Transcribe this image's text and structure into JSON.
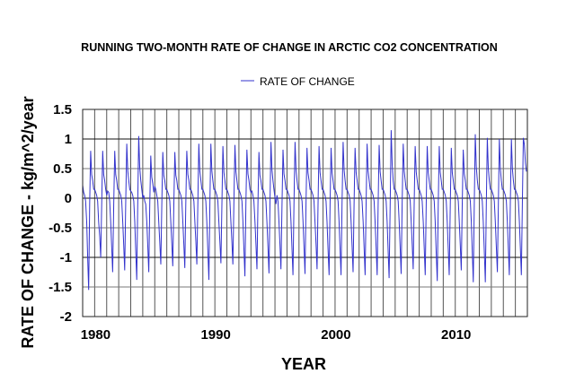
{
  "chart_data": {
    "type": "line",
    "title": "RUNNING TWO-MONTH RATE OF CHANGE IN ARCTIC CO2 CONCENTRATION",
    "xlabel": "YEAR",
    "ylabel": "RATE OF CHANGE - kg/m^2/year",
    "xlim": [
      1979,
      2016
    ],
    "ylim": [
      -2,
      1.5
    ],
    "x_ticks": [
      1980,
      1990,
      2000,
      2010
    ],
    "x_tick_labels": [
      "1980",
      "1990",
      "2000",
      "2010"
    ],
    "y_ticks": [
      1.5,
      1,
      0.5,
      0,
      -0.5,
      -1,
      -1.5,
      -2
    ],
    "y_tick_labels": [
      "1.5",
      "1",
      "0.5",
      "0",
      "-0.5",
      "-1",
      "-1.5",
      "-2"
    ],
    "grid": true,
    "vertical_grid": "every year",
    "legend_position": "top-center",
    "line_color": "#3333cc",
    "series": [
      {
        "name": "RATE OF CHANGE",
        "sampling": "monthly",
        "years": [
          {
            "year": 1979,
            "values": [
              0.22,
              0.1,
              0.05,
              -0.05,
              -0.4,
              -1.01,
              -1.55,
              -0.1,
              0.8,
              0.4,
              0.3,
              0.15
            ]
          },
          {
            "year": 1980,
            "values": [
              0.15,
              0.1,
              0.05,
              -0.05,
              -0.4,
              -0.65,
              -1.0,
              -0.1,
              0.8,
              0.4,
              0.3,
              0.15
            ]
          },
          {
            "year": 1981,
            "values": [
              0.05,
              0.12,
              0.1,
              -0.05,
              -0.4,
              -0.81,
              -1.25,
              -0.1,
              0.8,
              0.4,
              0.3,
              0.15
            ]
          },
          {
            "year": 1982,
            "values": [
              0.15,
              0.1,
              0.05,
              -0.05,
              -0.4,
              -0.79,
              -1.22,
              -0.1,
              0.92,
              0.46,
              0.3,
              0.15
            ]
          },
          {
            "year": 1983,
            "values": [
              0.12,
              0.1,
              0.05,
              -0.05,
              -0.4,
              -0.9,
              -1.38,
              -0.1,
              1.05,
              0.53,
              0.3,
              0.15
            ]
          },
          {
            "year": 1984,
            "values": [
              0.0,
              0.05,
              -0.05,
              -0.1,
              -0.4,
              -0.81,
              -1.25,
              -0.1,
              0.72,
              0.36,
              0.25,
              0.1
            ]
          },
          {
            "year": 1985,
            "values": [
              0.2,
              0.15,
              0.05,
              -0.05,
              -0.4,
              -0.73,
              -1.12,
              -0.1,
              0.78,
              0.39,
              0.3,
              0.15
            ]
          },
          {
            "year": 1986,
            "values": [
              0.15,
              0.1,
              0.05,
              -0.05,
              -0.4,
              -0.75,
              -1.15,
              -0.1,
              0.78,
              0.39,
              0.3,
              0.15
            ]
          },
          {
            "year": 1987,
            "values": [
              0.15,
              0.1,
              0.05,
              -0.05,
              -0.4,
              -0.77,
              -1.18,
              -0.1,
              0.8,
              0.4,
              0.3,
              0.15
            ]
          },
          {
            "year": 1988,
            "values": [
              0.15,
              0.1,
              0.05,
              -0.05,
              -0.4,
              -0.73,
              -1.12,
              -0.1,
              0.92,
              0.46,
              0.3,
              0.15
            ]
          },
          {
            "year": 1989,
            "values": [
              0.15,
              0.1,
              0.05,
              -0.05,
              -0.4,
              -0.9,
              -1.38,
              -0.1,
              0.92,
              0.46,
              0.3,
              0.15
            ]
          },
          {
            "year": 1990,
            "values": [
              0.15,
              0.1,
              0.05,
              -0.05,
              -0.4,
              -0.72,
              -1.1,
              -0.1,
              0.88,
              0.44,
              0.3,
              0.15
            ]
          },
          {
            "year": 1991,
            "values": [
              0.15,
              0.1,
              0.05,
              -0.05,
              -0.4,
              -0.73,
              -1.12,
              -0.1,
              0.9,
              0.45,
              0.3,
              0.15
            ]
          },
          {
            "year": 1992,
            "values": [
              0.15,
              0.1,
              0.05,
              -0.05,
              -0.4,
              -0.86,
              -1.32,
              -0.1,
              0.82,
              0.41,
              0.3,
              0.15
            ]
          },
          {
            "year": 1993,
            "values": [
              0.1,
              0.12,
              0.05,
              -0.05,
              -0.4,
              -0.78,
              -1.2,
              -0.1,
              0.78,
              0.39,
              0.3,
              0.15
            ]
          },
          {
            "year": 1994,
            "values": [
              0.15,
              0.1,
              0.05,
              -0.05,
              -0.4,
              -0.83,
              -1.27,
              -0.1,
              0.95,
              0.48,
              0.3,
              0.15
            ]
          },
          {
            "year": 1995,
            "values": [
              0.0,
              -0.1,
              0.05,
              -0.05,
              -0.4,
              -0.78,
              -1.2,
              -0.1,
              0.82,
              0.41,
              0.3,
              0.15
            ]
          },
          {
            "year": 1996,
            "values": [
              0.15,
              0.1,
              0.05,
              -0.05,
              -0.4,
              -0.85,
              -1.3,
              -0.1,
              0.95,
              0.48,
              0.3,
              0.15
            ]
          },
          {
            "year": 1997,
            "values": [
              0.15,
              0.1,
              0.05,
              -0.05,
              -0.4,
              -0.83,
              -1.28,
              -0.1,
              0.85,
              0.43,
              0.3,
              0.15
            ]
          },
          {
            "year": 1998,
            "values": [
              0.15,
              0.1,
              0.05,
              -0.05,
              -0.4,
              -0.78,
              -1.2,
              -0.1,
              0.88,
              0.44,
              0.3,
              0.15
            ]
          },
          {
            "year": 1999,
            "values": [
              0.15,
              0.1,
              0.05,
              -0.05,
              -0.4,
              -0.85,
              -1.3,
              -0.1,
              0.85,
              0.43,
              0.3,
              0.15
            ]
          },
          {
            "year": 2000,
            "values": [
              0.15,
              0.1,
              0.05,
              -0.05,
              -0.4,
              -0.85,
              -1.3,
              -0.1,
              0.95,
              0.48,
              0.3,
              0.15
            ]
          },
          {
            "year": 2001,
            "values": [
              0.15,
              0.1,
              0.05,
              -0.05,
              -0.4,
              -0.81,
              -1.25,
              -0.1,
              0.85,
              0.43,
              0.3,
              0.15
            ]
          },
          {
            "year": 2002,
            "values": [
              0.15,
              0.1,
              0.05,
              -0.05,
              -0.4,
              -0.85,
              -1.3,
              -0.1,
              0.92,
              0.46,
              0.3,
              0.15
            ]
          },
          {
            "year": 2003,
            "values": [
              0.15,
              0.1,
              0.05,
              -0.05,
              -0.4,
              -0.85,
              -1.3,
              -0.1,
              0.9,
              0.45,
              0.3,
              0.15
            ]
          },
          {
            "year": 2004,
            "values": [
              0.15,
              0.1,
              0.05,
              -0.05,
              -0.4,
              -0.88,
              -1.35,
              -0.1,
              1.15,
              0.58,
              0.3,
              0.15
            ]
          },
          {
            "year": 2005,
            "values": [
              0.15,
              0.1,
              0.05,
              -0.05,
              -0.4,
              -0.83,
              -1.28,
              -0.1,
              0.92,
              0.46,
              0.3,
              0.15
            ]
          },
          {
            "year": 2006,
            "values": [
              0.15,
              0.1,
              0.05,
              -0.05,
              -0.4,
              -0.78,
              -1.2,
              -0.1,
              0.88,
              0.44,
              0.3,
              0.15
            ]
          },
          {
            "year": 2007,
            "values": [
              0.15,
              0.1,
              0.05,
              -0.05,
              -0.4,
              -0.85,
              -1.3,
              -0.1,
              0.88,
              0.44,
              0.3,
              0.15
            ]
          },
          {
            "year": 2008,
            "values": [
              0.15,
              0.1,
              0.05,
              -0.05,
              -0.4,
              -0.91,
              -1.4,
              -0.1,
              0.88,
              0.44,
              0.3,
              0.15
            ]
          },
          {
            "year": 2009,
            "values": [
              0.15,
              0.1,
              0.05,
              -0.05,
              -0.4,
              -0.85,
              -1.3,
              -0.1,
              0.85,
              0.43,
              0.3,
              0.15
            ]
          },
          {
            "year": 2010,
            "values": [
              0.15,
              0.1,
              0.05,
              -0.05,
              -0.4,
              -0.79,
              -1.22,
              -0.1,
              0.82,
              0.41,
              0.3,
              0.15
            ]
          },
          {
            "year": 2011,
            "values": [
              0.15,
              0.1,
              0.05,
              -0.05,
              -0.4,
              -0.92,
              -1.42,
              -0.1,
              1.08,
              0.54,
              0.3,
              0.15
            ]
          },
          {
            "year": 2012,
            "values": [
              0.15,
              0.1,
              0.05,
              -0.05,
              -0.4,
              -0.92,
              -1.42,
              -0.1,
              1.02,
              0.51,
              0.3,
              0.15
            ]
          },
          {
            "year": 2013,
            "values": [
              0.15,
              0.1,
              0.05,
              -0.05,
              -0.4,
              -0.81,
              -1.25,
              -0.1,
              1.0,
              0.5,
              0.3,
              0.15
            ]
          },
          {
            "year": 2014,
            "values": [
              0.15,
              0.1,
              0.05,
              -0.05,
              -0.4,
              -0.85,
              -1.3,
              -0.1,
              1.0,
              0.5,
              0.3,
              0.15
            ]
          },
          {
            "year": 2015,
            "values": [
              0.15,
              0.1,
              0.05,
              -0.05,
              -0.4,
              -0.85,
              -1.3,
              -0.1,
              1.02,
              0.9,
              0.6,
              0.45
            ]
          }
        ]
      }
    ]
  }
}
